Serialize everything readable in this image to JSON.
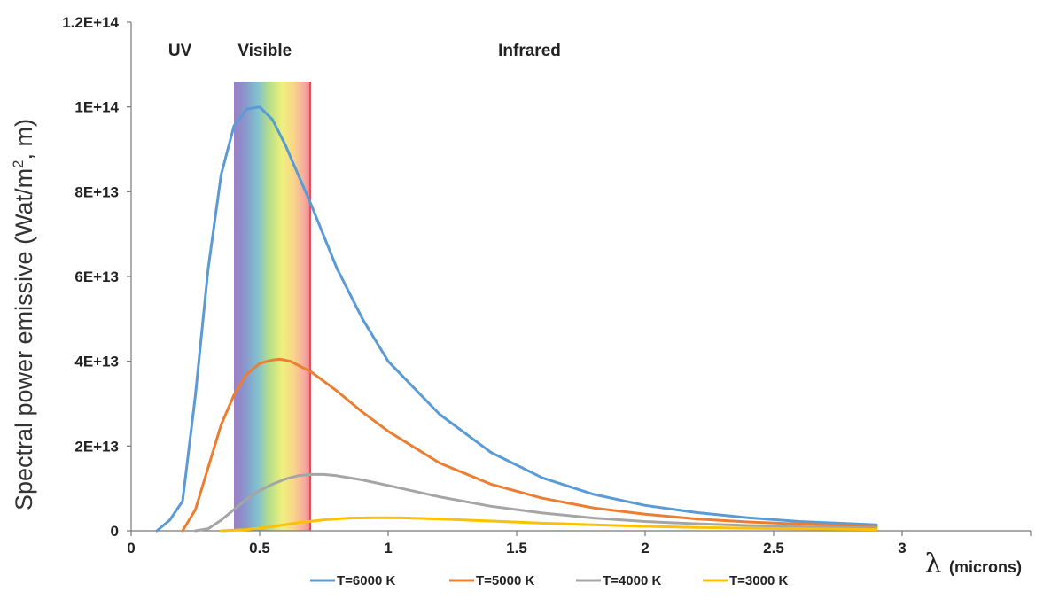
{
  "chart_data": {
    "type": "line",
    "title": "",
    "ylabel": "Spectral power emissive (Wat/m², m)",
    "ylabel_main": "Spectral power emissive (Wat/m",
    "ylabel_sup": "2",
    "ylabel_tail": ", m)",
    "xlabel_symbol": "λ",
    "xlabel_unit": "(microns)",
    "xlim": [
      0,
      3.5
    ],
    "ylim": [
      0,
      120000000000000.0
    ],
    "x_ticks": [
      0,
      0.5,
      1,
      1.5,
      2,
      2.5,
      3
    ],
    "x_tick_labels": [
      "0",
      "0.5",
      "1",
      "1.5",
      "2",
      "2.5",
      "3"
    ],
    "y_ticks": [
      0,
      20000000000000.0,
      40000000000000.0,
      60000000000000.0,
      80000000000000.0,
      100000000000000.0,
      120000000000000.0
    ],
    "y_tick_labels": [
      "0",
      "2E+13",
      "4E+13",
      "6E+13",
      "8E+13",
      "1E+14",
      "1.2E+14"
    ],
    "regions": [
      {
        "label": "UV",
        "x": 0.19
      },
      {
        "label": "Visible",
        "x": 0.52
      },
      {
        "label": "Infrared",
        "x": 1.55
      }
    ],
    "visible_band": {
      "x_start": 0.4,
      "x_end": 0.7,
      "y_top": 106000000000000.0
    },
    "legend_position": "bottom",
    "series": [
      {
        "name": "T=6000 K",
        "color": "#5b9bd5",
        "x": [
          0.1,
          0.15,
          0.2,
          0.25,
          0.3,
          0.35,
          0.4,
          0.45,
          0.5,
          0.55,
          0.6,
          0.7,
          0.8,
          0.9,
          1.0,
          1.2,
          1.4,
          1.6,
          1.8,
          2.0,
          2.2,
          2.4,
          2.6,
          2.9
        ],
        "y": [
          0,
          2500000000000.0,
          7000000000000.0,
          32000000000000.0,
          62000000000000.0,
          84000000000000.0,
          95500000000000.0,
          99500000000000.0,
          100000000000000.0,
          97000000000000.0,
          91000000000000.0,
          77000000000000.0,
          62000000000000.0,
          50000000000000.0,
          40000000000000.0,
          27500000000000.0,
          18500000000000.0,
          12500000000000.0,
          8600000000000.0,
          6000000000000.0,
          4300000000000.0,
          3100000000000.0,
          2200000000000.0,
          1400000000000.0
        ]
      },
      {
        "name": "T=5000 K",
        "color": "#ed7d31",
        "x": [
          0.2,
          0.25,
          0.3,
          0.35,
          0.4,
          0.45,
          0.5,
          0.55,
          0.58,
          0.62,
          0.7,
          0.8,
          0.9,
          1.0,
          1.2,
          1.4,
          1.6,
          1.8,
          2.0,
          2.2,
          2.4,
          2.6,
          2.9
        ],
        "y": [
          0,
          5000000000000.0,
          15000000000000.0,
          25000000000000.0,
          32000000000000.0,
          37000000000000.0,
          39500000000000.0,
          40300000000000.0,
          40500000000000.0,
          40000000000000.0,
          37500000000000.0,
          33000000000000.0,
          28000000000000.0,
          23500000000000.0,
          16000000000000.0,
          11000000000000.0,
          7700000000000.0,
          5400000000000.0,
          3900000000000.0,
          2800000000000.0,
          2100000000000.0,
          1600000000000.0,
          1000000000000.0
        ]
      },
      {
        "name": "T=4000 K",
        "color": "#a5a5a5",
        "x": [
          0.25,
          0.3,
          0.35,
          0.4,
          0.45,
          0.5,
          0.55,
          0.6,
          0.65,
          0.7,
          0.75,
          0.8,
          0.9,
          1.0,
          1.2,
          1.4,
          1.6,
          1.8,
          2.0,
          2.2,
          2.4,
          2.6,
          2.9
        ],
        "y": [
          0,
          500000000000.0,
          2500000000000.0,
          5000000000000.0,
          7500000000000.0,
          9500000000000.0,
          11000000000000.0,
          12200000000000.0,
          13000000000000.0,
          13300000000000.0,
          13300000000000.0,
          13000000000000.0,
          12000000000000.0,
          10700000000000.0,
          8000000000000.0,
          5800000000000.0,
          4200000000000.0,
          3000000000000.0,
          2200000000000.0,
          1650000000000.0,
          1250000000000.0,
          950000000000.0,
          650000000000.0
        ]
      },
      {
        "name": "T=3000 K",
        "color": "#ffc000",
        "x": [
          0.35,
          0.45,
          0.55,
          0.65,
          0.75,
          0.85,
          0.95,
          1.05,
          1.2,
          1.4,
          1.6,
          1.8,
          2.0,
          2.2,
          2.4,
          2.6,
          2.9
        ],
        "y": [
          0,
          300000000000.0,
          1000000000000.0,
          1900000000000.0,
          2600000000000.0,
          3000000000000.0,
          3100000000000.0,
          3050000000000.0,
          2800000000000.0,
          2300000000000.0,
          1800000000000.0,
          1400000000000.0,
          1050000000000.0,
          800000000000.0,
          600000000000.0,
          450000000000.0,
          300000000000.0
        ]
      }
    ]
  }
}
